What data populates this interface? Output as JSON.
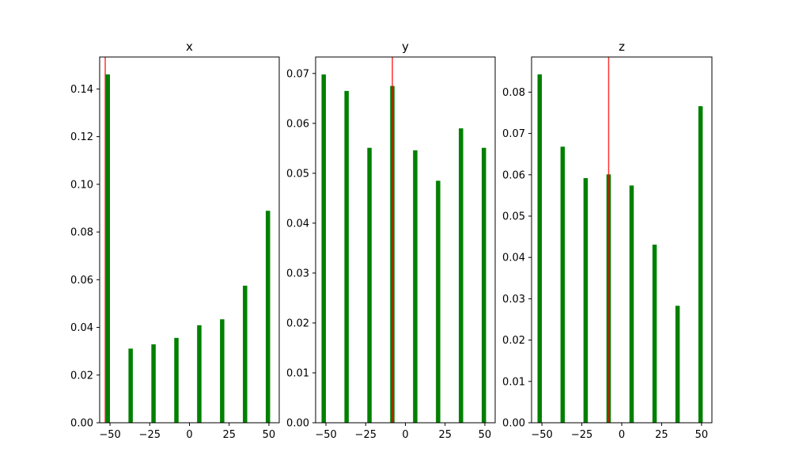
{
  "chart_data": [
    {
      "type": "bar",
      "title": "x",
      "xlabel": "",
      "ylabel": "",
      "x": [
        -51.4,
        -37,
        -22.6,
        -8.2,
        6.2,
        20.6,
        35,
        49.4
      ],
      "values": [
        0.1461,
        0.0311,
        0.0329,
        0.0356,
        0.0409,
        0.0434,
        0.0575,
        0.0889
      ],
      "bar_color": "#008000",
      "vline": {
        "x": -53.0,
        "color": "#ff0000"
      },
      "xlim": [
        -56.5,
        56.5
      ],
      "ylim": [
        0,
        0.1534
      ],
      "xticks": [
        -50,
        -25,
        0,
        25,
        50
      ],
      "xtick_labels": [
        "−50",
        "−25",
        "0",
        "25",
        "50"
      ],
      "yticks": [
        0,
        0.02,
        0.04,
        0.06,
        0.08,
        0.1,
        0.12,
        0.14
      ],
      "ytick_labels": [
        "0.00",
        "0.02",
        "0.04",
        "0.06",
        "0.08",
        "0.10",
        "0.12",
        "0.14"
      ],
      "grid": false
    },
    {
      "type": "bar",
      "title": "y",
      "xlabel": "",
      "ylabel": "",
      "x": [
        -51.4,
        -37,
        -22.6,
        -8.2,
        6.2,
        20.6,
        35,
        49.4
      ],
      "values": [
        0.0698,
        0.0665,
        0.0551,
        0.0675,
        0.0546,
        0.0485,
        0.059,
        0.0551
      ],
      "bar_color": "#008000",
      "vline": {
        "x": -8.2,
        "color": "#ff0000"
      },
      "xlim": [
        -56.5,
        56.5
      ],
      "ylim": [
        0,
        0.0733
      ],
      "xticks": [
        -50,
        -25,
        0,
        25,
        50
      ],
      "xtick_labels": [
        "−50",
        "−25",
        "0",
        "25",
        "50"
      ],
      "yticks": [
        0,
        0.01,
        0.02,
        0.03,
        0.04,
        0.05,
        0.06,
        0.07
      ],
      "ytick_labels": [
        "0.00",
        "0.01",
        "0.02",
        "0.03",
        "0.04",
        "0.05",
        "0.06",
        "0.07"
      ],
      "grid": false
    },
    {
      "type": "bar",
      "title": "z",
      "xlabel": "",
      "ylabel": "",
      "x": [
        -51.4,
        -37,
        -22.6,
        -8.2,
        6.2,
        20.6,
        35,
        49.4
      ],
      "values": [
        0.0843,
        0.0668,
        0.0592,
        0.0601,
        0.0574,
        0.0431,
        0.0283,
        0.0766
      ],
      "bar_color": "#008000",
      "vline": {
        "x": -8.2,
        "color": "#ff0000"
      },
      "xlim": [
        -56.5,
        56.5
      ],
      "ylim": [
        0,
        0.0885
      ],
      "xticks": [
        -50,
        -25,
        0,
        25,
        50
      ],
      "xtick_labels": [
        "−50",
        "−25",
        "0",
        "25",
        "50"
      ],
      "yticks": [
        0,
        0.01,
        0.02,
        0.03,
        0.04,
        0.05,
        0.06,
        0.07,
        0.08
      ],
      "ytick_labels": [
        "0.00",
        "0.01",
        "0.02",
        "0.03",
        "0.04",
        "0.05",
        "0.06",
        "0.07",
        "0.08"
      ],
      "grid": false
    }
  ]
}
